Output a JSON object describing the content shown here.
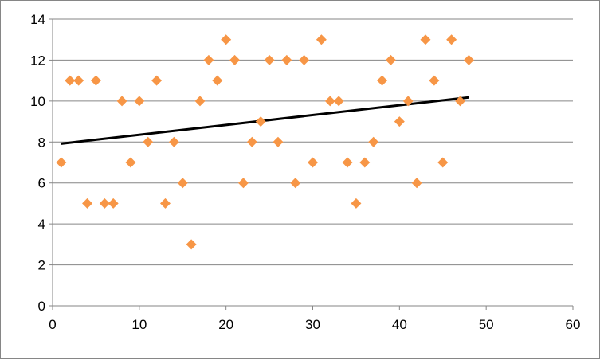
{
  "chart_data": {
    "type": "scatter",
    "title": "",
    "xlabel": "",
    "ylabel": "",
    "xlim": [
      0,
      60
    ],
    "ylim": [
      0,
      14
    ],
    "x_ticks": [
      0,
      10,
      20,
      30,
      40,
      50,
      60
    ],
    "y_ticks": [
      0,
      2,
      4,
      6,
      8,
      10,
      12,
      14
    ],
    "x_tick_labels": [
      "0",
      "10",
      "20",
      "30",
      "40",
      "50",
      "60"
    ],
    "y_tick_labels": [
      "0",
      "2",
      "4",
      "6",
      "8",
      "10",
      "12",
      "14"
    ],
    "grid": "horizontal major gridlines",
    "legend": "none",
    "series": [
      {
        "marker": "diamond",
        "color": "#F79646",
        "x": [
          1,
          2,
          3,
          4,
          5,
          6,
          7,
          8,
          9,
          10,
          11,
          12,
          13,
          14,
          15,
          16,
          17,
          18,
          19,
          20,
          21,
          22,
          23,
          24,
          25,
          26,
          27,
          28,
          29,
          30,
          31,
          32,
          33,
          34,
          35,
          36,
          37,
          38,
          39,
          40,
          41,
          42,
          43,
          44,
          45,
          46,
          47,
          48
        ],
        "y": [
          7,
          11,
          11,
          5,
          11,
          5,
          5,
          10,
          7,
          10,
          8,
          11,
          5,
          8,
          6,
          3,
          10,
          12,
          11,
          13,
          12,
          6,
          8,
          9,
          12,
          8,
          12,
          6,
          12,
          7,
          13,
          10,
          10,
          7,
          5,
          7,
          8,
          11,
          12,
          9,
          10,
          6,
          13,
          11,
          7,
          13,
          10,
          12
        ]
      }
    ],
    "trendline": {
      "type": "linear",
      "color": "#000000",
      "x": [
        1,
        48
      ],
      "y": [
        7.92,
        10.18
      ]
    }
  }
}
